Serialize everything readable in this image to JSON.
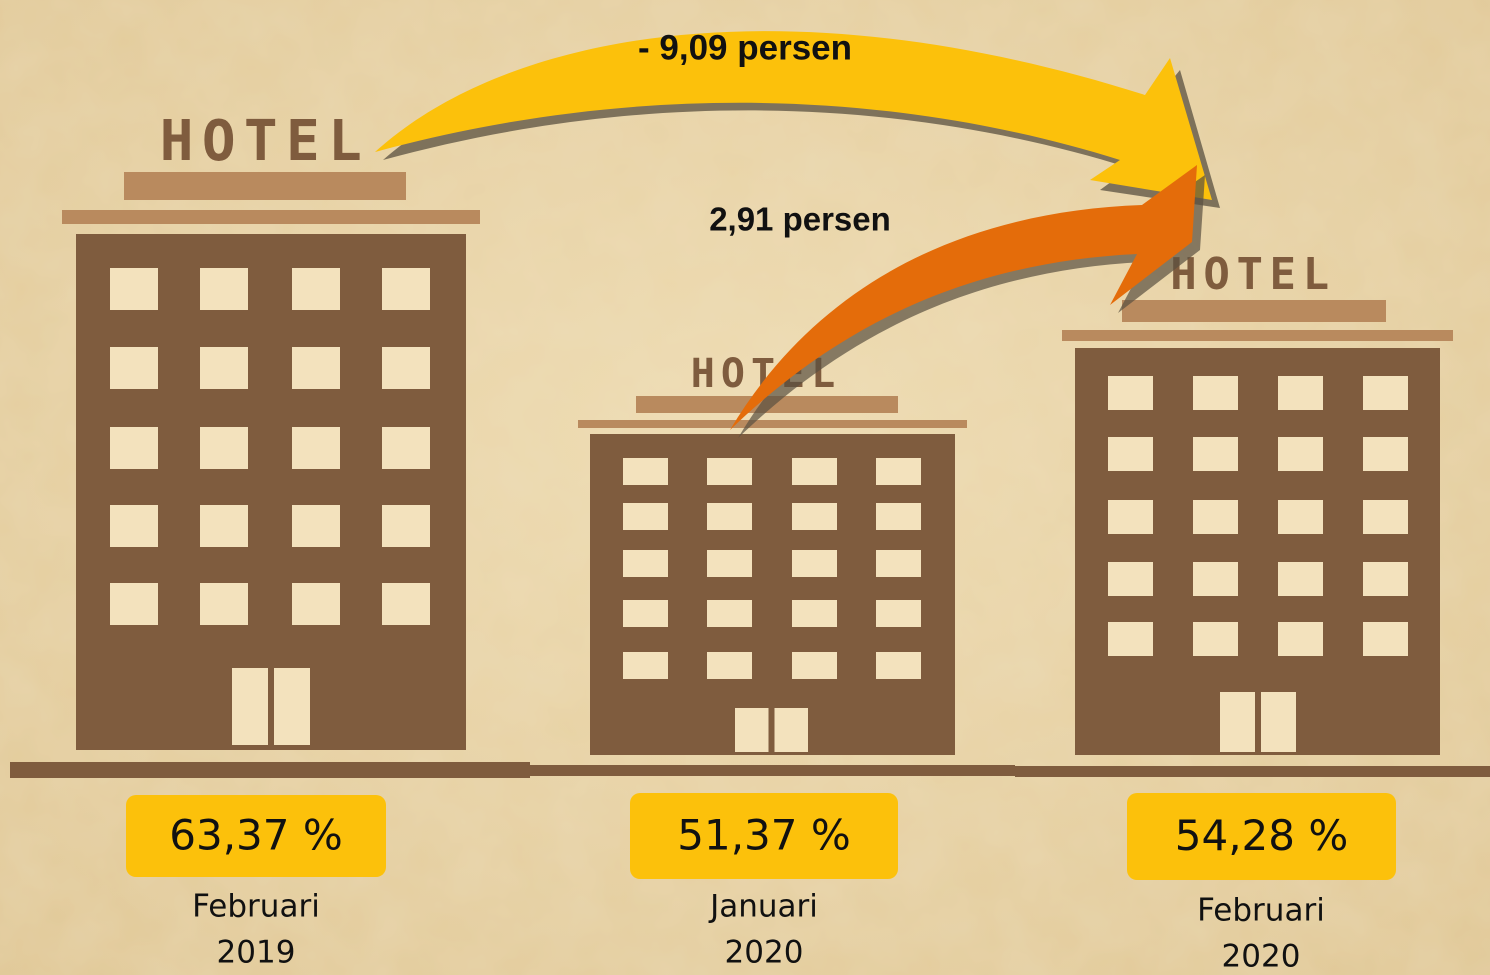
{
  "arrows": [
    {
      "label": "- 9,09 persen"
    },
    {
      "label": "2,91 persen"
    }
  ],
  "hotels": [
    {
      "sign": "HOTEL",
      "value": "63,37 %",
      "period": [
        "Februari",
        "2019"
      ]
    },
    {
      "sign": "HOTEL",
      "value": "51,37 %",
      "period": [
        "Januari",
        "2020"
      ]
    },
    {
      "sign": "HOTEL",
      "value": "54,28 %",
      "period": [
        "Februari",
        "2020"
      ]
    }
  ]
}
